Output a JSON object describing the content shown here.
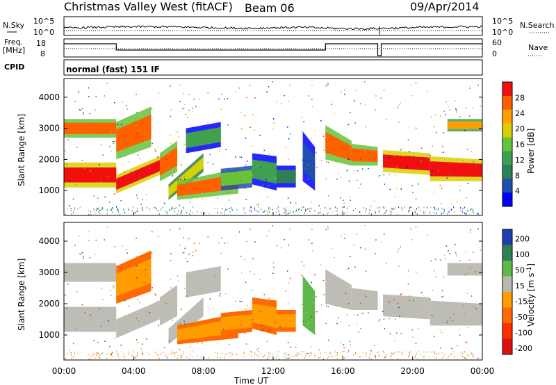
{
  "header": {
    "title": "Christmas Valley West (fitACF)",
    "beam": "Beam 06",
    "date": "09/Apr/2014"
  },
  "top_panels": {
    "nsky_label": "N.Sky",
    "nsearch_label": "N.Search",
    "noise_ticks": [
      "10^5",
      "10^0"
    ],
    "freq_label_1": "Freq.",
    "freq_label_2": "[MHz]",
    "freq_ticks": [
      "18",
      "8"
    ],
    "nave_label": "Nave",
    "nave_ticks": [
      "60",
      "0"
    ],
    "cpid_label": "CPID",
    "cpid_text": "normal (fast) 151 IF"
  },
  "colors": {
    "power": [
      "#0000ff",
      "#1f4fb0",
      "#2f7f55",
      "#3fa050",
      "#66c33a",
      "#d8d000",
      "#ffa000",
      "#ff6000",
      "#f01010"
    ],
    "velocity": [
      "#1f3fb0",
      "#2f7f55",
      "#5fb84a",
      "#b8bab0",
      "#ff9d00",
      "#ff6a00",
      "#ff3000",
      "#e01010"
    ],
    "velocity_gray": "#bdbdb5"
  },
  "chart_data": [
    {
      "type": "heatmap",
      "title": "Power",
      "xlabel": "Time UT",
      "ylabel": "Slant Range [km]",
      "xlim": [
        "00:00",
        "24:00"
      ],
      "x_ticks": [
        "00:00",
        "04:00",
        "08:00",
        "12:00",
        "16:00",
        "20:00",
        "00:00"
      ],
      "y_ticks": [
        1000,
        2000,
        3000,
        4000
      ],
      "ylim": [
        200,
        4600
      ],
      "colorbar_label": "Power [dB]",
      "colorbar_ticks": [
        4,
        8,
        12,
        16,
        20,
        24,
        28
      ],
      "colorbar_range": [
        0,
        30
      ]
    },
    {
      "type": "heatmap",
      "title": "Velocity",
      "xlabel": "Time UT",
      "ylabel": "Slant Range [km]",
      "xlim": [
        "00:00",
        "24:00"
      ],
      "x_ticks": [
        "00:00",
        "04:00",
        "08:00",
        "12:00",
        "16:00",
        "20:00",
        "00:00"
      ],
      "y_ticks": [
        1000,
        2000,
        3000,
        4000
      ],
      "ylim": [
        200,
        4600
      ],
      "colorbar_label": "Velocity [m s^-1]",
      "colorbar_ticks": [
        200,
        100,
        50,
        15,
        -15,
        -50,
        -100,
        -200
      ]
    }
  ],
  "axis": {
    "xlabel": "Time UT",
    "ylabel": "Slant Range [km]",
    "x_ticks": [
      "00:00",
      "04:00",
      "08:00",
      "12:00",
      "16:00",
      "20:00",
      "00:00"
    ],
    "y_ticks": [
      "1000",
      "2000",
      "3000",
      "4000"
    ],
    "power_bar_label": "Power [dB]",
    "power_ticks": [
      "28",
      "24",
      "20",
      "16",
      "12",
      "8",
      "4"
    ],
    "velocity_bar_label": "Velocity [m s",
    "velocity_bar_sup": "-1",
    "velocity_ticks": [
      "200",
      "100",
      "50",
      "15",
      "-15",
      "-50",
      "-100",
      "-200"
    ]
  }
}
